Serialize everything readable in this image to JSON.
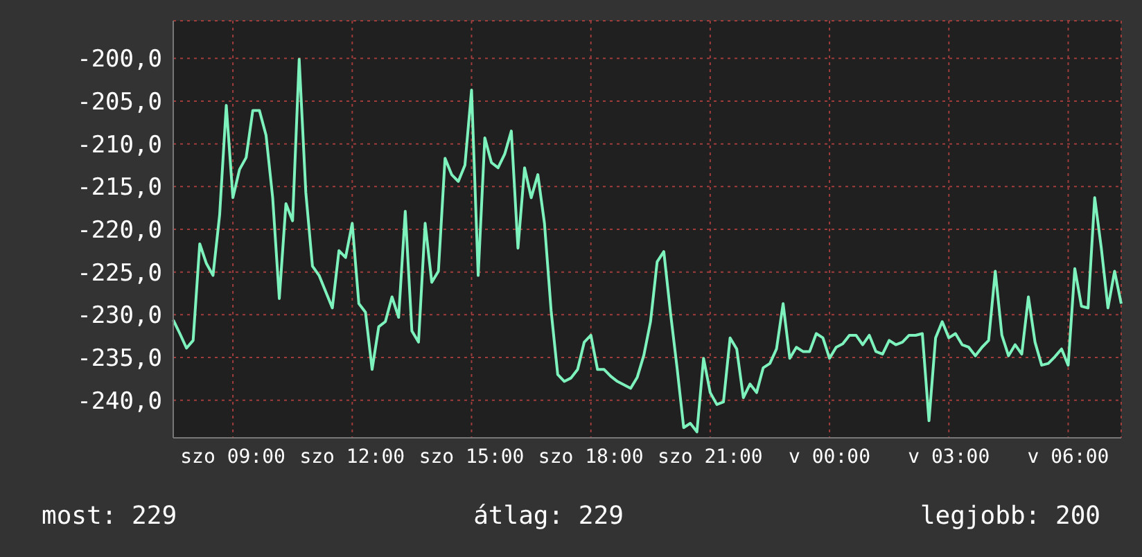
{
  "chart_data": {
    "type": "line",
    "categories": [
      null,
      null,
      null,
      null,
      null,
      null,
      null,
      null,
      null,
      "szo 09:00",
      null,
      null,
      null,
      null,
      null,
      null,
      null,
      null,
      null,
      null,
      null,
      null,
      null,
      null,
      null,
      null,
      null,
      "szo 12:00",
      null,
      null,
      null,
      null,
      null,
      null,
      null,
      null,
      null,
      null,
      null,
      null,
      null,
      null,
      null,
      null,
      null,
      "szo 15:00",
      null,
      null,
      null,
      null,
      null,
      null,
      null,
      null,
      null,
      null,
      null,
      null,
      null,
      null,
      null,
      null,
      null,
      "szo 18:00",
      null,
      null,
      null,
      null,
      null,
      null,
      null,
      null,
      null,
      null,
      null,
      null,
      null,
      null,
      null,
      null,
      null,
      "szo 21:00",
      null,
      null,
      null,
      null,
      null,
      null,
      null,
      null,
      null,
      null,
      null,
      null,
      null,
      null,
      null,
      null,
      null,
      "v 00:00",
      null,
      null,
      null,
      null,
      null,
      null,
      null,
      null,
      null,
      null,
      null,
      null,
      null,
      null,
      null,
      null,
      null,
      "v 03:00",
      null,
      null,
      null,
      null,
      null,
      null,
      null,
      null,
      null,
      null,
      null,
      null,
      null,
      null,
      null,
      null,
      null,
      "v 06:00",
      null,
      null,
      null,
      null,
      null,
      null,
      null,
      null
    ],
    "series": [
      {
        "color": "#7ef2bd",
        "values": [
          -230.6,
          -232.2,
          -233.9,
          -233,
          -221.7,
          -224,
          -225.4,
          -218.3,
          -205.5,
          -216.3,
          -213,
          -211.6,
          -206.1,
          -206.1,
          -209,
          -216.3,
          -228.1,
          -217,
          -219,
          -200.1,
          -215.7,
          -224.3,
          -225.4,
          -227.3,
          -229.2,
          -222.5,
          -223.3,
          -219.3,
          -228.7,
          -229.7,
          -236.4,
          -231.4,
          -230.8,
          -227.9,
          -230.3,
          -217.9,
          -231.9,
          -233.2,
          -219.3,
          -226.2,
          -224.9,
          -211.7,
          -213.6,
          -214.4,
          -212.5,
          -203.7,
          -225.4,
          -209.3,
          -212.2,
          -212.8,
          -211.2,
          -208.5,
          -222.2,
          -212.8,
          -216.3,
          -213.6,
          -219.3,
          -229.5,
          -237,
          -237.8,
          -237.4,
          -236.4,
          -233.2,
          -232.4,
          -236.4,
          -236.4,
          -237.2,
          -237.8,
          -238.2,
          -238.6,
          -237.3,
          -234.7,
          -230.8,
          -223.8,
          -222.6,
          -229.7,
          -236.2,
          -243.2,
          -242.7,
          -243.7,
          -235.1,
          -239.1,
          -240.5,
          -240.2,
          -232.7,
          -234,
          -239.7,
          -238.1,
          -239.1,
          -236.2,
          -235.7,
          -234,
          -228.7,
          -235.1,
          -233.8,
          -234.3,
          -234.3,
          -232.2,
          -232.7,
          -235.1,
          -233.8,
          -233.4,
          -232.4,
          -232.4,
          -233.5,
          -232.4,
          -234.3,
          -234.6,
          -233,
          -233.5,
          -233.2,
          -232.4,
          -232.4,
          -232.2,
          -242.4,
          -232.7,
          -230.8,
          -232.7,
          -232.2,
          -233.5,
          -233.8,
          -234.8,
          -233.8,
          -233,
          -224.9,
          -232.4,
          -234.8,
          -233.5,
          -234.6,
          -227.9,
          -233.2,
          -235.9,
          -235.7,
          -234.9,
          -234,
          -235.9,
          -224.6,
          -229,
          -229.2,
          -216.3,
          -222.2,
          -229.2,
          -224.9,
          -228.7
        ]
      }
    ],
    "ylim": [
      -244.4,
      -195.6
    ],
    "yticks": [
      {
        "value": -240,
        "label": "-240,0"
      },
      {
        "value": -235,
        "label": "-235,0"
      },
      {
        "value": -230,
        "label": "-230,0"
      },
      {
        "value": -225,
        "label": "-225,0"
      },
      {
        "value": -220,
        "label": "-220,0"
      },
      {
        "value": -215,
        "label": "-215,0"
      },
      {
        "value": -210,
        "label": "-210,0"
      },
      {
        "value": -205,
        "label": "-205,0"
      },
      {
        "value": -200,
        "label": "-200,0"
      }
    ],
    "grid": true,
    "annotations": [
      "most: 229",
      "átlag: 229",
      "legjobb: 200"
    ]
  }
}
